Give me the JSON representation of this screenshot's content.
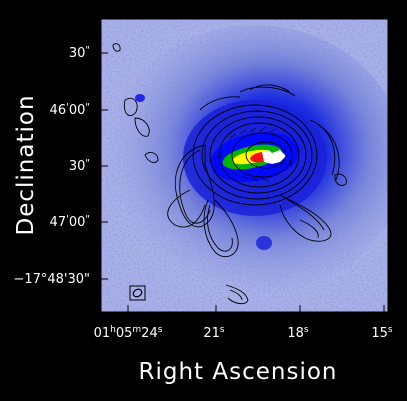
{
  "chart_data": {
    "type": "heatmap",
    "title": "",
    "xlabel": "Right Ascension",
    "ylabel": "Declination",
    "x_ticks": [
      "01h05m24s",
      "21s",
      "18s",
      "15s"
    ],
    "x_ticks_parts": [
      {
        "main": "01",
        "sup1": "h",
        "mid": "05",
        "sup2": "m",
        "tail": "24",
        "sup3": "s"
      },
      {
        "main": "21",
        "sup1": "s"
      },
      {
        "main": "18",
        "sup1": "s"
      },
      {
        "main": "15",
        "sup1": "s"
      }
    ],
    "x_tick_values_sec": [
      24,
      21,
      18,
      15
    ],
    "y_ticks": [
      "30\"",
      "46'00\"",
      "30\"",
      "47'00\"",
      "-17°48'30\""
    ],
    "y_tick_labels": [
      {
        "main": "30",
        "mark": "\""
      },
      {
        "main": "46",
        "mark": "'",
        "tail": "00",
        "mark2": "\""
      },
      {
        "main": "30",
        "mark": "\""
      },
      {
        "main": "47",
        "mark": "'",
        "tail": "00",
        "mark2": "\""
      },
      {
        "main": "−17°",
        "tail": "48'30\""
      }
    ],
    "colormap": [
      "#ffffff",
      "#c8d0f0",
      "#8e9ae8",
      "#3c3ce6",
      "#0000c8",
      "#00c800",
      "#ffff00",
      "#ff0000"
    ],
    "contour_color": "#000000",
    "beam_marker": "ellipse in square, bottom-left",
    "grid": false,
    "legend": "none"
  }
}
